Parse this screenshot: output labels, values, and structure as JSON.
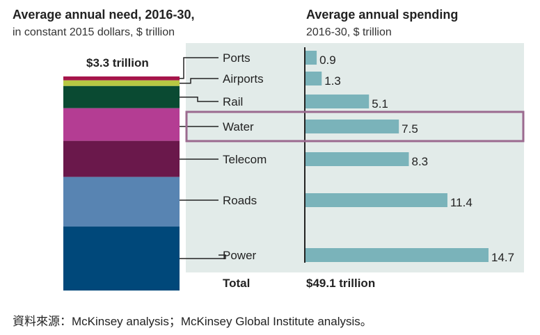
{
  "header": {
    "left_title": "Average annual need, 2016-30,",
    "left_subtitle": "in constant 2015 dollars, $ trillion",
    "right_title": "Average annual spending",
    "right_subtitle": "2016-30, $ trillion"
  },
  "stack_total_label": "$3.3 trillion",
  "total_label": "Total",
  "total_value": "$49.1 trillion",
  "source": "資料來源：McKinsey analysis；McKinsey Global Institute analysis。",
  "highlight_category": "Water",
  "colors": {
    "panel_bg": "#e2ebe9",
    "bar": "#7ab3ba",
    "highlight_border": "#9b6a8f",
    "axis": "#222222"
  },
  "chart_data": {
    "type": "bar",
    "orientation": "horizontal",
    "categories": [
      "Ports",
      "Airports",
      "Rail",
      "Water",
      "Telecom",
      "Roads",
      "Power"
    ],
    "values": [
      0.9,
      1.3,
      5.1,
      7.5,
      8.3,
      11.4,
      14.7
    ],
    "value_labels": [
      "0.9",
      "1.3",
      "5.1",
      "7.5",
      "8.3",
      "11.4",
      "14.7"
    ],
    "stack_colors": [
      "#a5154a",
      "#b8c843",
      "#0a4a32",
      "#b43d93",
      "#6a184b",
      "#5884b2",
      "#00487a"
    ],
    "title": "Average annual spending",
    "xlim": [
      0,
      14.7
    ]
  }
}
